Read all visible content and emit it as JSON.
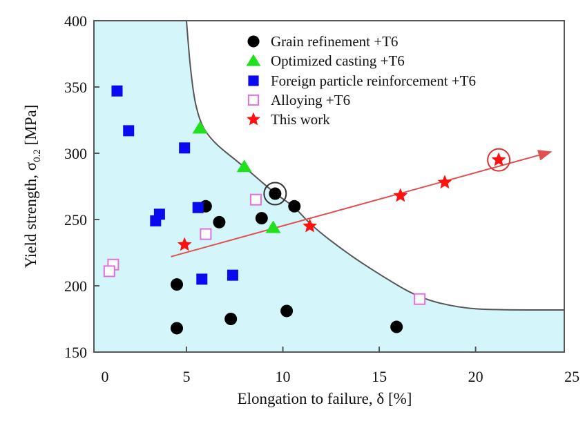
{
  "chart_data": {
    "type": "scatter",
    "xlabel": "Elongation to failure, δ [%]",
    "ylabel_main": "Yield strength, σ",
    "ylabel_sub": "0.2",
    "ylabel_unit": " [MPa]",
    "xlim": [
      0.2,
      24.6
    ],
    "ylim": [
      150,
      400
    ],
    "xticks": [
      0,
      5,
      10,
      15,
      20,
      25
    ],
    "yticks": [
      150,
      200,
      250,
      300,
      350,
      400
    ],
    "grid": false,
    "legend_position": "top-center",
    "region_color": "#d4f6fa",
    "boundary_curve": [
      [
        5.0,
        400
      ],
      [
        5.2,
        363.5
      ],
      [
        5.5,
        332
      ],
      [
        6.1,
        311.6
      ],
      [
        8.0,
        289.8
      ],
      [
        9.6,
        269.5
      ],
      [
        10.6,
        259.7
      ],
      [
        11.5,
        245.1
      ],
      [
        13.3,
        224.9
      ],
      [
        15.1,
        207.7
      ],
      [
        17.1,
        190.6
      ],
      [
        19.2,
        183.3
      ],
      [
        21.0,
        181.8
      ],
      [
        24.6,
        181.8
      ]
    ],
    "series": [
      {
        "name": "Grain refinement +T6",
        "marker": "circle",
        "color": "#000000",
        "points": [
          [
            9.6,
            269.5
          ],
          [
            10.6,
            260
          ],
          [
            6.0,
            260
          ],
          [
            6.7,
            248
          ],
          [
            8.9,
            251
          ],
          [
            4.5,
            201
          ],
          [
            4.5,
            168
          ],
          [
            7.3,
            175
          ],
          [
            10.2,
            181
          ],
          [
            15.9,
            169
          ]
        ]
      },
      {
        "name": "Optimized casting +T6",
        "marker": "triangle",
        "color": "#22e01e",
        "points": [
          [
            5.7,
            319
          ],
          [
            8.0,
            290
          ],
          [
            9.5,
            244
          ]
        ]
      },
      {
        "name": "Foreign particle reinforcement +T6",
        "marker": "square",
        "color": "#0a0af0",
        "points": [
          [
            1.4,
            347
          ],
          [
            2.0,
            317
          ],
          [
            4.9,
            304
          ],
          [
            3.6,
            254
          ],
          [
            3.4,
            249
          ],
          [
            5.6,
            259
          ],
          [
            5.8,
            205
          ],
          [
            7.4,
            208
          ]
        ]
      },
      {
        "name": "Alloying +T6",
        "marker": "open-square",
        "color": "#e070e0",
        "points": [
          [
            8.6,
            265
          ],
          [
            6.0,
            239
          ],
          [
            1.2,
            216
          ],
          [
            1.0,
            211
          ],
          [
            17.1,
            190
          ]
        ]
      },
      {
        "name": "This work",
        "marker": "star",
        "color": "#ff1010",
        "points": [
          [
            4.9,
            231
          ],
          [
            11.4,
            245
          ],
          [
            16.1,
            268
          ],
          [
            18.4,
            278
          ],
          [
            21.2,
            295
          ]
        ]
      }
    ],
    "trend_arrow": {
      "color": "#e05050",
      "from": [
        4.2,
        222
      ],
      "to": [
        23.9,
        301
      ]
    },
    "highlighted_points": [
      {
        "series": "Grain refinement +T6",
        "point": [
          9.6,
          269.5
        ],
        "color": "#333333"
      },
      {
        "series": "This work",
        "point": [
          21.2,
          295
        ],
        "color": "#e03030"
      }
    ]
  }
}
